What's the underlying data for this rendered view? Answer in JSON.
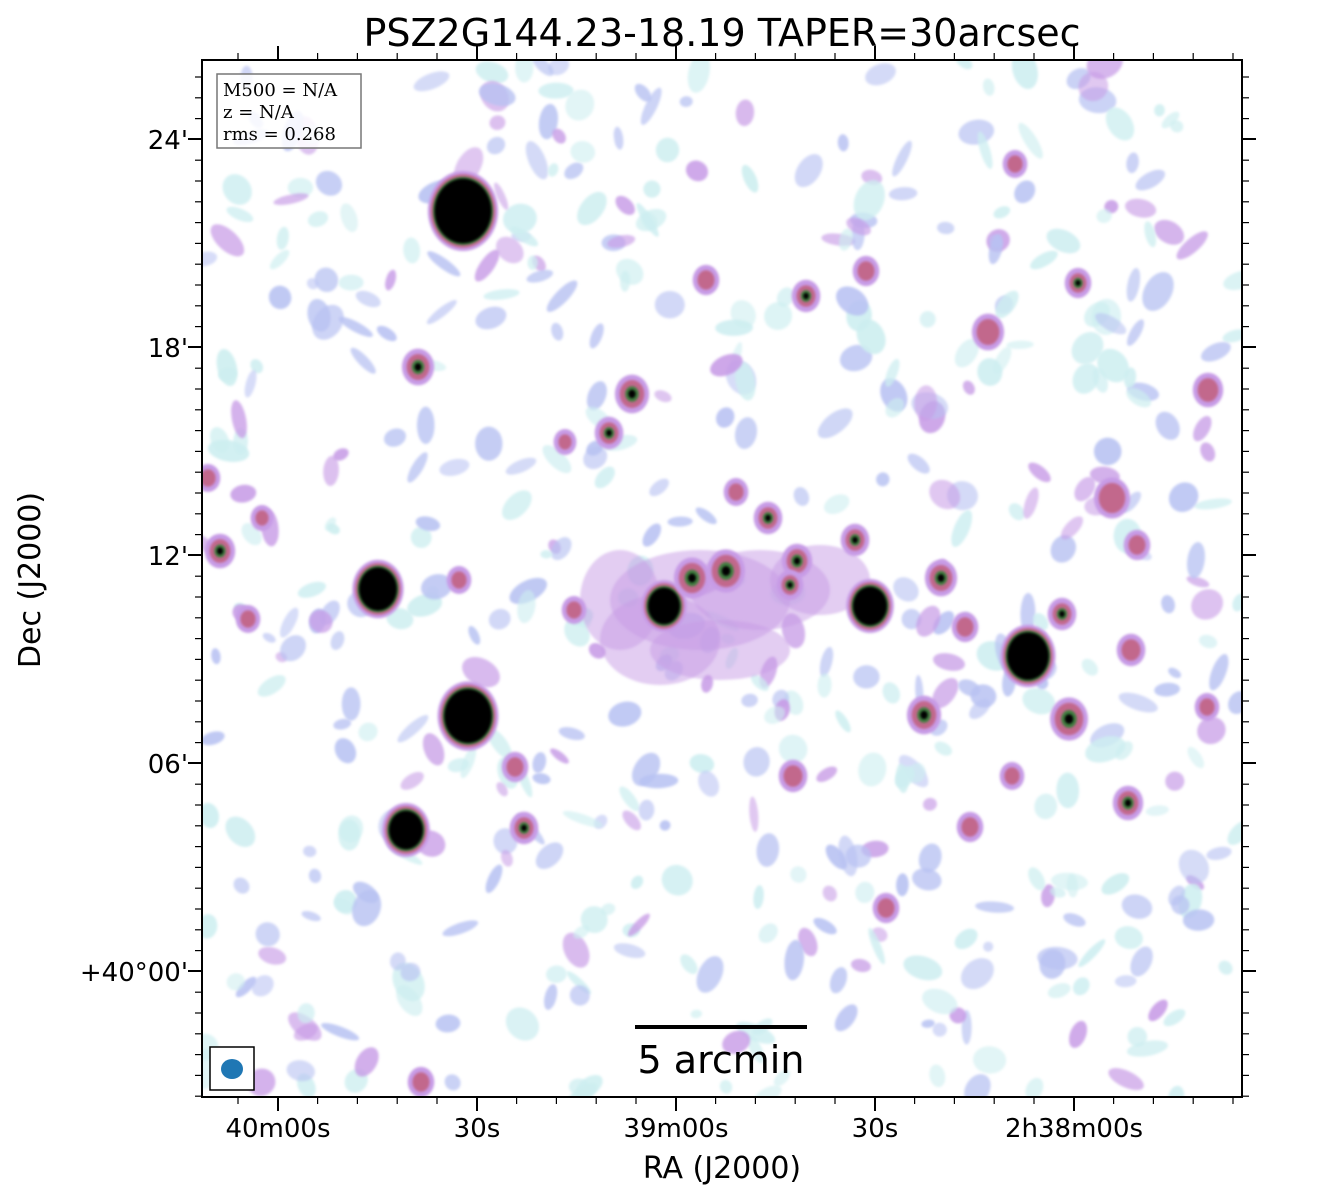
{
  "figure": {
    "title": "PSZ2G144.23-18.19 TAPER=30arcsec",
    "xlabel": "RA (J2000)",
    "ylabel": "Dec (J2000)",
    "info_box": {
      "lines": [
        "M500 = N/A",
        "z = N/A",
        "rms = 0.268"
      ]
    },
    "scale_bar_label": "5 arcmin",
    "beam_color": "#1f77b4",
    "x_ticks": [
      "40m00s",
      "30s",
      "39m00s",
      "30s",
      "2h38m00s"
    ],
    "y_ticks": [
      "24'",
      "18'",
      "12'",
      "06'",
      "+40°00'"
    ],
    "colormap": [
      "#ffffff",
      "#cdeef0",
      "#b8c2f2",
      "#c79be6",
      "#c2688c",
      "#3f7f3f",
      "#000000"
    ]
  }
}
